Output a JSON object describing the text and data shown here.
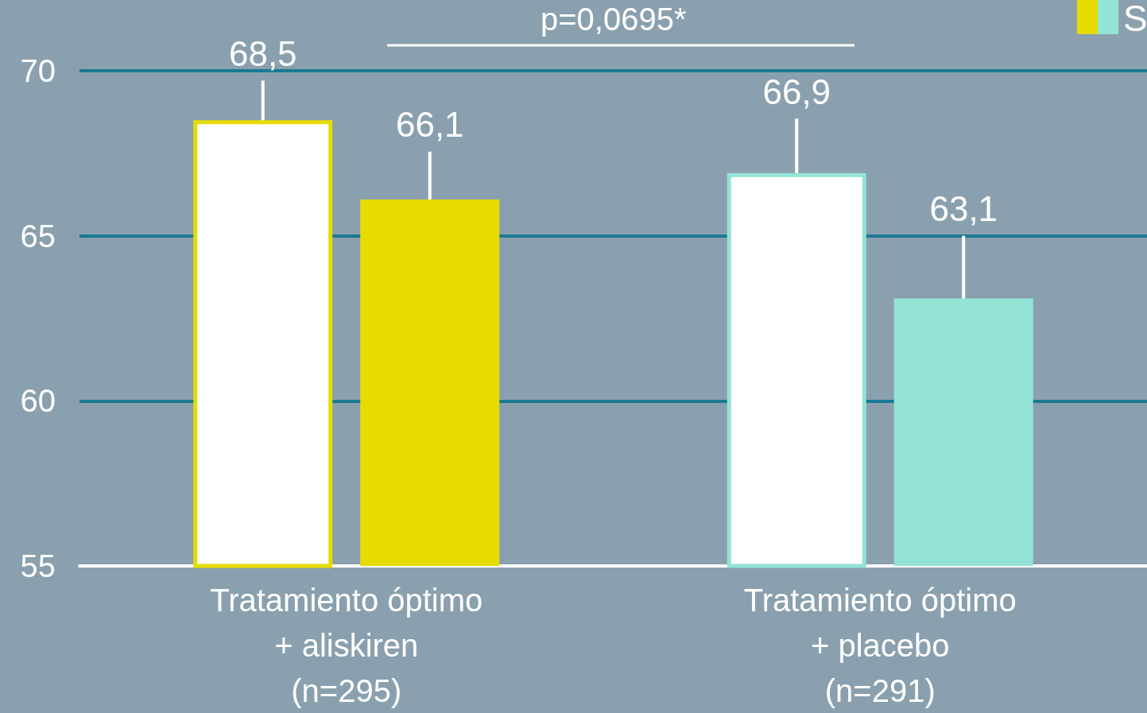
{
  "chart_data": {
    "type": "bar",
    "categories": [
      "Tratamiento óptimo\n+ aliskiren\n(n=295)",
      "Tratamiento óptimo\n+ placebo\n(n=291)"
    ],
    "series": [
      {
        "color": "#ffffff",
        "values": [
          68.5,
          66.9
        ],
        "errors": [
          [
            68.5,
            69.7
          ],
          [
            66.9,
            68.55
          ]
        ],
        "value_labels": [
          "68,5",
          "66,9"
        ]
      },
      {
        "colors": [
          "#e6dc00",
          "#93e3d6"
        ],
        "values": [
          66.1,
          63.1
        ],
        "errors": [
          [
            66.1,
            67.55
          ],
          [
            63.1,
            65.0
          ]
        ],
        "value_labels": [
          "66,1",
          "63,1"
        ]
      }
    ],
    "ylim": [
      55,
      70
    ],
    "yticks": [
      55,
      60,
      65,
      70
    ],
    "grid": "y",
    "annotations": [
      "p=0,0695*",
      "S"
    ]
  }
}
